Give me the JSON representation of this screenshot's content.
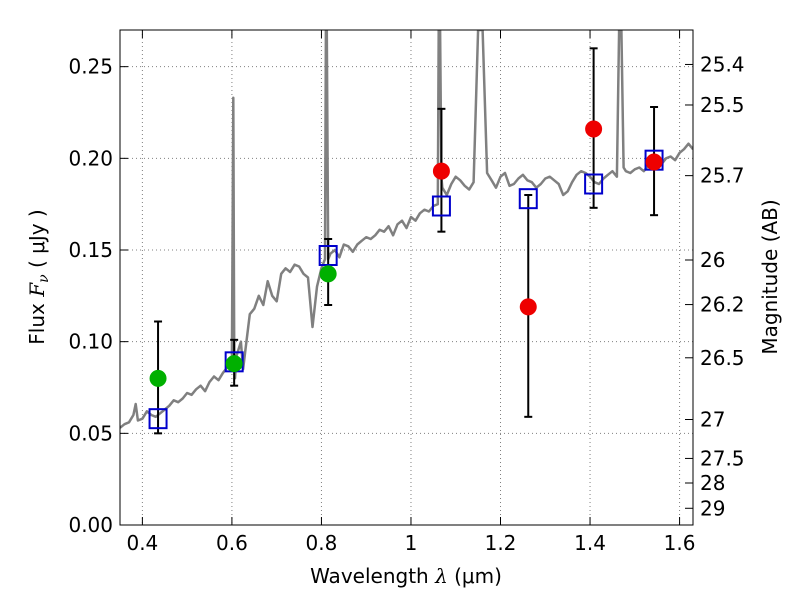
{
  "chart_data": {
    "type": "scatter",
    "xlabel": "Wavelength  λ (μm)",
    "ylabel": "Flux  Fν  ( μJy )",
    "ylabel_parts": {
      "prefix": "Flux  ",
      "symbol": "F",
      "subscript": "ν",
      "suffix": "  ( μJy )"
    },
    "xlabel_parts": {
      "prefix": "Wavelength  ",
      "symbol": "λ",
      "suffix": " (μm)"
    },
    "y2label": "Magnitude (AB)",
    "xlim": [
      0.35,
      1.63
    ],
    "ylim": [
      0.0,
      0.27
    ],
    "grid": true,
    "x_ticks": [
      {
        "value": 0.4,
        "label": "0.4"
      },
      {
        "value": 0.6,
        "label": "0.6"
      },
      {
        "value": 0.8,
        "label": "0.8"
      },
      {
        "value": 1.0,
        "label": "1"
      },
      {
        "value": 1.2,
        "label": "1.2"
      },
      {
        "value": 1.4,
        "label": "1.4"
      },
      {
        "value": 1.6,
        "label": "1.6"
      }
    ],
    "y_ticks": [
      {
        "value": 0.0,
        "label": "0.00"
      },
      {
        "value": 0.05,
        "label": "0.05"
      },
      {
        "value": 0.1,
        "label": "0.10"
      },
      {
        "value": 0.15,
        "label": "0.15"
      },
      {
        "value": 0.2,
        "label": "0.20"
      },
      {
        "value": 0.25,
        "label": "0.25"
      }
    ],
    "mag_ticks": [
      {
        "mag": 25.4,
        "label": "25.4"
      },
      {
        "mag": 25.5,
        "label": "25.5"
      },
      {
        "mag": 25.7,
        "label": "25.7"
      },
      {
        "mag": 26.0,
        "label": "26"
      },
      {
        "mag": 26.2,
        "label": "26.2"
      },
      {
        "mag": 26.5,
        "label": "26.5"
      },
      {
        "mag": 27.0,
        "label": "27"
      },
      {
        "mag": 27.5,
        "label": "27.5"
      },
      {
        "mag": 28.0,
        "label": "28"
      },
      {
        "mag": 29.0,
        "label": "29"
      }
    ],
    "colors": {
      "spectrum": "#808080",
      "model": "#0000cc",
      "green": "#00b000",
      "red": "#ee0000",
      "errorbar": "#000000",
      "grid": "#808080"
    },
    "spectrum": {
      "x": [
        0.35,
        0.36,
        0.37,
        0.38,
        0.385,
        0.39,
        0.4,
        0.41,
        0.42,
        0.43,
        0.44,
        0.45,
        0.46,
        0.47,
        0.48,
        0.49,
        0.5,
        0.51,
        0.52,
        0.53,
        0.54,
        0.55,
        0.56,
        0.57,
        0.58,
        0.59,
        0.6,
        0.603,
        0.605,
        0.607,
        0.61,
        0.62,
        0.625,
        0.63,
        0.64,
        0.65,
        0.66,
        0.67,
        0.68,
        0.69,
        0.7,
        0.71,
        0.72,
        0.73,
        0.74,
        0.75,
        0.76,
        0.77,
        0.78,
        0.79,
        0.8,
        0.808,
        0.81,
        0.812,
        0.815,
        0.82,
        0.83,
        0.84,
        0.85,
        0.86,
        0.87,
        0.88,
        0.89,
        0.9,
        0.91,
        0.92,
        0.93,
        0.94,
        0.95,
        0.96,
        0.97,
        0.98,
        0.99,
        1.0,
        1.01,
        1.02,
        1.03,
        1.04,
        1.05,
        1.06,
        1.062,
        1.065,
        1.068,
        1.07,
        1.08,
        1.09,
        1.1,
        1.11,
        1.12,
        1.13,
        1.14,
        1.15,
        1.16,
        1.17,
        1.18,
        1.19,
        1.2,
        1.21,
        1.22,
        1.23,
        1.24,
        1.25,
        1.26,
        1.27,
        1.28,
        1.29,
        1.3,
        1.31,
        1.32,
        1.33,
        1.34,
        1.35,
        1.36,
        1.37,
        1.38,
        1.39,
        1.4,
        1.41,
        1.42,
        1.43,
        1.44,
        1.45,
        1.46,
        1.465,
        1.47,
        1.475,
        1.48,
        1.49,
        1.5,
        1.51,
        1.52,
        1.53,
        1.54,
        1.55,
        1.56,
        1.57,
        1.58,
        1.59,
        1.6,
        1.61,
        1.62,
        1.63
      ],
      "y": [
        0.053,
        0.055,
        0.056,
        0.06,
        0.066,
        0.057,
        0.058,
        0.062,
        0.06,
        0.059,
        0.061,
        0.063,
        0.065,
        0.068,
        0.067,
        0.069,
        0.072,
        0.071,
        0.074,
        0.076,
        0.073,
        0.078,
        0.081,
        0.079,
        0.083,
        0.086,
        0.09,
        0.233,
        0.095,
        0.08,
        0.092,
        0.1,
        0.085,
        0.095,
        0.115,
        0.118,
        0.125,
        0.12,
        0.133,
        0.125,
        0.122,
        0.137,
        0.14,
        0.138,
        0.142,
        0.141,
        0.137,
        0.135,
        0.108,
        0.13,
        0.14,
        0.145,
        0.27,
        0.27,
        0.145,
        0.148,
        0.15,
        0.146,
        0.153,
        0.152,
        0.149,
        0.153,
        0.155,
        0.157,
        0.156,
        0.158,
        0.161,
        0.16,
        0.163,
        0.158,
        0.164,
        0.166,
        0.162,
        0.168,
        0.166,
        0.17,
        0.172,
        0.171,
        0.174,
        0.175,
        0.27,
        0.27,
        0.19,
        0.184,
        0.18,
        0.186,
        0.19,
        0.188,
        0.185,
        0.183,
        0.187,
        0.27,
        0.27,
        0.192,
        0.188,
        0.184,
        0.19,
        0.192,
        0.185,
        0.186,
        0.189,
        0.191,
        0.188,
        0.187,
        0.184,
        0.186,
        0.189,
        0.19,
        0.188,
        0.186,
        0.18,
        0.182,
        0.187,
        0.191,
        0.193,
        0.192,
        0.19,
        0.187,
        0.186,
        0.189,
        0.191,
        0.193,
        0.19,
        0.27,
        0.27,
        0.195,
        0.193,
        0.192,
        0.194,
        0.195,
        0.193,
        0.196,
        0.198,
        0.199,
        0.197,
        0.2,
        0.201,
        0.199,
        0.203,
        0.205,
        0.208,
        0.205
      ],
      "clip_top": true
    },
    "model_points": {
      "x": [
        0.435,
        0.605,
        0.815,
        1.068,
        1.262,
        1.408,
        1.543
      ],
      "y": [
        0.058,
        0.089,
        0.147,
        0.174,
        0.178,
        0.186,
        0.199
      ]
    },
    "green_points": {
      "x": [
        0.435,
        0.605,
        0.815
      ],
      "y": [
        0.08,
        0.088,
        0.137
      ],
      "err_low": [
        0.03,
        0.012,
        0.017
      ],
      "err_high": [
        0.031,
        0.013,
        0.019
      ]
    },
    "red_points": {
      "x": [
        1.068,
        1.262,
        1.408,
        1.543
      ],
      "y": [
        0.193,
        0.119,
        0.216,
        0.198
      ],
      "err_low": [
        0.033,
        0.06,
        0.043,
        0.029
      ],
      "err_high": [
        0.034,
        0.061,
        0.044,
        0.03
      ]
    }
  }
}
